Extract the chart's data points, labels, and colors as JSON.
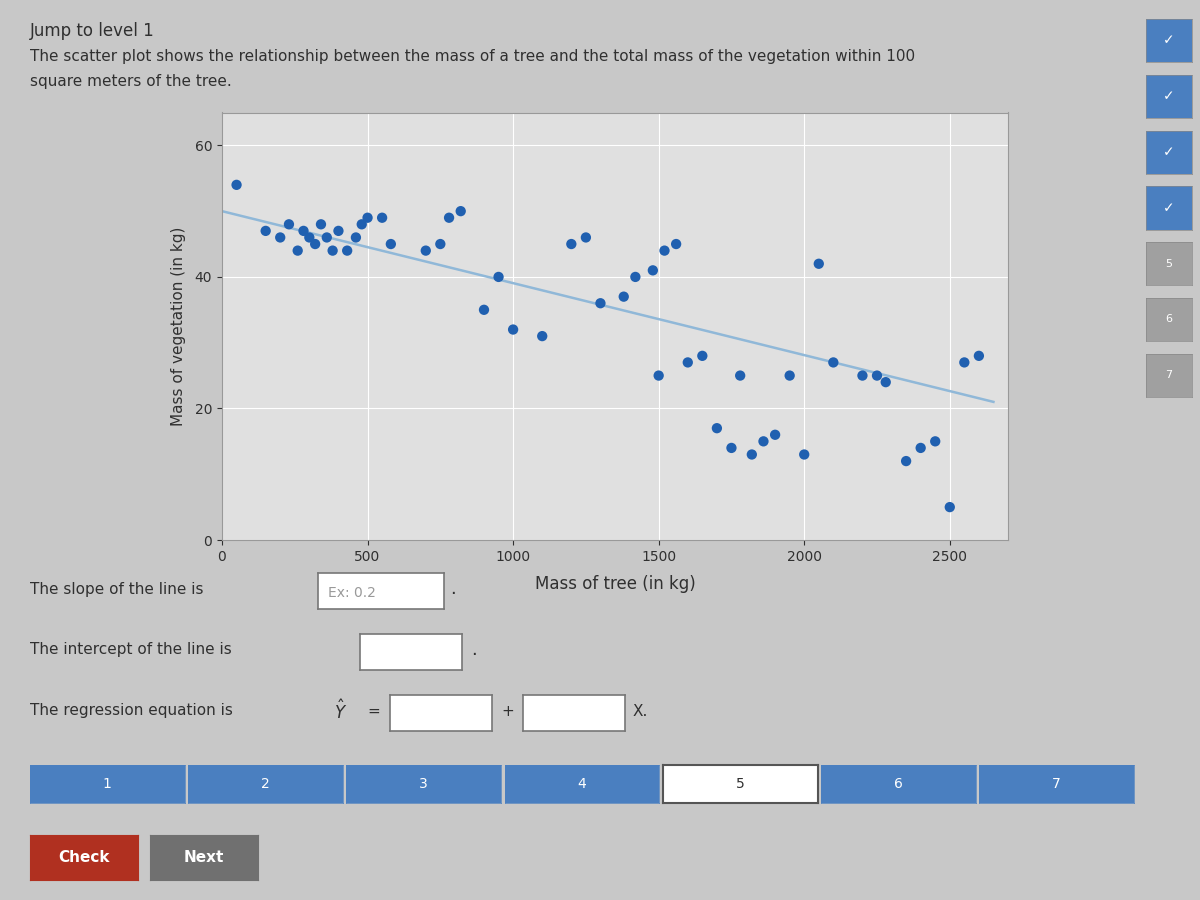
{
  "title": "Jump to level 1",
  "description_line1": "The scatter plot shows the relationship between the mass of a tree and the total mass of the vegetation within 100",
  "description_line2": "square meters of the tree.",
  "xlabel": "Mass of tree (in kg)",
  "ylabel": "Mass of vegetation (in kg)",
  "xlim": [
    0,
    2700
  ],
  "ylim": [
    0,
    65
  ],
  "xticks": [
    0,
    500,
    1000,
    1500,
    2000,
    2500
  ],
  "yticks": [
    0,
    20,
    40,
    60
  ],
  "scatter_x": [
    50,
    150,
    200,
    230,
    260,
    280,
    300,
    320,
    340,
    360,
    380,
    400,
    430,
    460,
    480,
    500,
    550,
    580,
    700,
    750,
    780,
    820,
    900,
    950,
    1000,
    1100,
    1200,
    1250,
    1300,
    1380,
    1420,
    1480,
    1500,
    1520,
    1560,
    1600,
    1650,
    1700,
    1750,
    1780,
    1820,
    1860,
    1900,
    1950,
    2000,
    2050,
    2100,
    2200,
    2250,
    2280,
    2350,
    2400,
    2450,
    2500,
    2550,
    2600
  ],
  "scatter_y": [
    54,
    47,
    46,
    48,
    44,
    47,
    46,
    45,
    48,
    46,
    44,
    47,
    44,
    46,
    48,
    49,
    49,
    45,
    44,
    45,
    49,
    50,
    35,
    40,
    32,
    31,
    45,
    46,
    36,
    37,
    40,
    41,
    25,
    44,
    45,
    27,
    28,
    17,
    14,
    25,
    13,
    15,
    16,
    25,
    13,
    42,
    27,
    25,
    25,
    24,
    12,
    14,
    15,
    5,
    27,
    28
  ],
  "dot_color": "#2060b0",
  "line_color": "#90b8d8",
  "line_x": [
    0,
    2650
  ],
  "line_y": [
    50,
    21
  ],
  "bg_color": "#c8c8c8",
  "plot_bg_color": "#e0e0e0",
  "grid_color": "#ffffff",
  "text_color": "#303030",
  "slope_placeholder": "Ex: 0.2",
  "bottom_tabs": [
    "1",
    "2",
    "3",
    "4",
    "5",
    "6",
    "7"
  ],
  "tab_active_color": "#4a7fc0",
  "tab_inactive_color": "#c0c0c0",
  "button_check_color": "#b03020",
  "button_next_color": "#707070",
  "right_items_filled": [
    true,
    true,
    true,
    true,
    false,
    false,
    false
  ]
}
